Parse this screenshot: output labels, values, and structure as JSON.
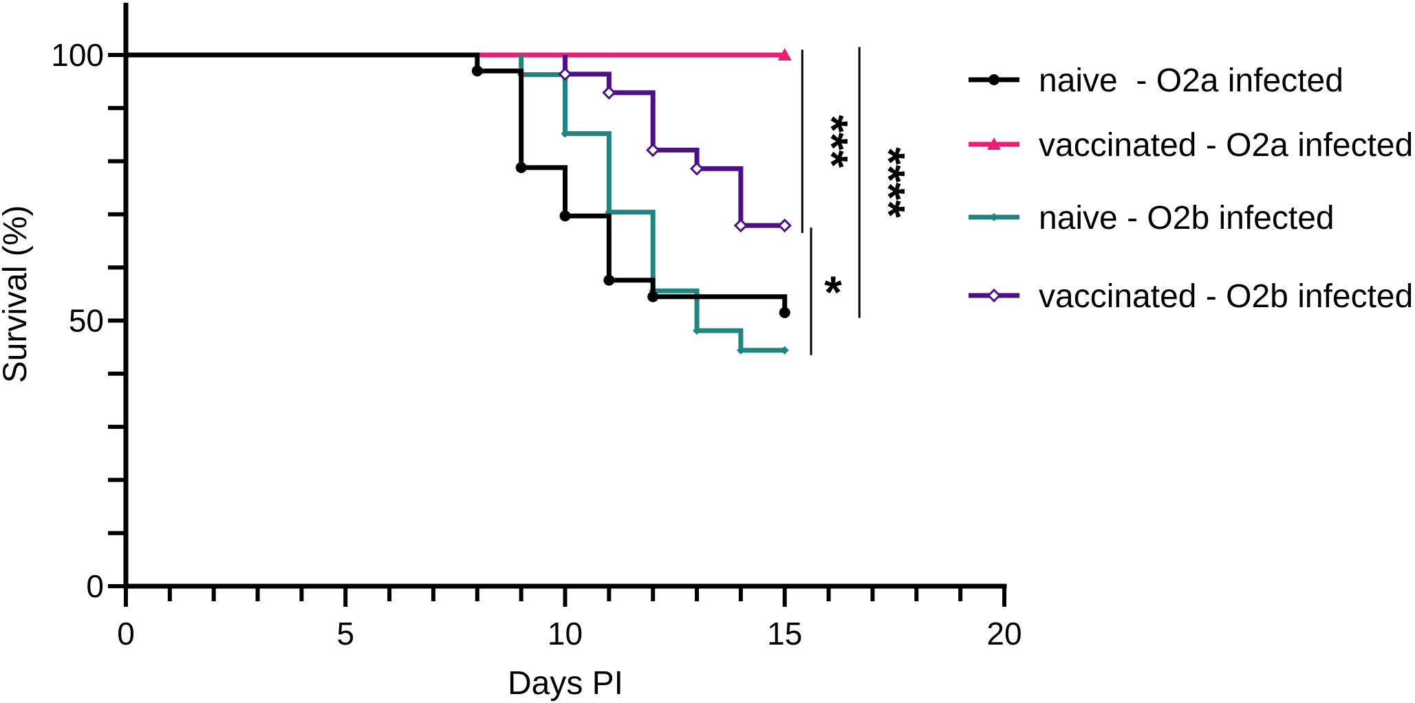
{
  "chart_data": {
    "type": "line",
    "subtype": "kaplan-meier-step",
    "title": "",
    "xlabel": "Days PI",
    "ylabel": "Survival (%)",
    "xlim": [
      0,
      20
    ],
    "ylim": [
      0,
      110
    ],
    "xticks": [
      0,
      5,
      10,
      15,
      20
    ],
    "yticks": [
      0,
      50,
      100
    ],
    "x_minor_step": 1,
    "y_minor_step": 10,
    "legend_position": "right",
    "series": [
      {
        "name": "naive  - O2a infected",
        "color": "#000000",
        "marker": "circle",
        "x": [
          0,
          8,
          9,
          10,
          11,
          12,
          15
        ],
        "y": [
          100,
          97,
          78.8,
          69.7,
          57.6,
          54.5,
          51.5
        ],
        "markers_x": [
          8,
          9,
          10,
          11,
          12,
          15
        ],
        "markers_y": [
          97,
          78.8,
          69.7,
          57.6,
          54.5,
          51.5
        ]
      },
      {
        "name": "vaccinated - O2a infected",
        "color": "#ee1a73",
        "marker": "triangle",
        "x": [
          8,
          15
        ],
        "y": [
          100,
          100
        ],
        "markers_x": [
          15
        ],
        "markers_y": [
          100
        ]
      },
      {
        "name": "naive - O2b infected",
        "color": "#1f8580",
        "marker": "diamond",
        "x": [
          9,
          10,
          11,
          12,
          13,
          14,
          15
        ],
        "y": [
          96.3,
          85.2,
          70.4,
          55.6,
          48.1,
          44.4,
          44.4
        ],
        "markers_x": [
          9,
          10,
          11,
          12,
          13,
          14,
          15
        ],
        "markers_y": [
          96.3,
          85.2,
          70.4,
          55.6,
          48.1,
          44.4,
          44.4
        ]
      },
      {
        "name": "vaccinated - O2b infected",
        "color": "#4b0f8c",
        "marker": "open-diamond",
        "x": [
          10,
          11,
          12,
          13,
          14,
          15
        ],
        "y": [
          96.4,
          92.9,
          82.1,
          78.6,
          67.9,
          67.9
        ],
        "markers_x": [
          10,
          11,
          12,
          13,
          14,
          15
        ],
        "markers_y": [
          96.4,
          92.9,
          82.1,
          78.6,
          67.9,
          67.9
        ]
      }
    ],
    "significance": [
      {
        "label": "***",
        "x": 15.4,
        "y_range": [
          66.5,
          101
        ]
      },
      {
        "label": "*",
        "x": 15.6,
        "y_range": [
          43.5,
          67.5
        ]
      },
      {
        "label": "****",
        "x": 16.7,
        "y_range": [
          50.5,
          101.5
        ]
      }
    ]
  }
}
